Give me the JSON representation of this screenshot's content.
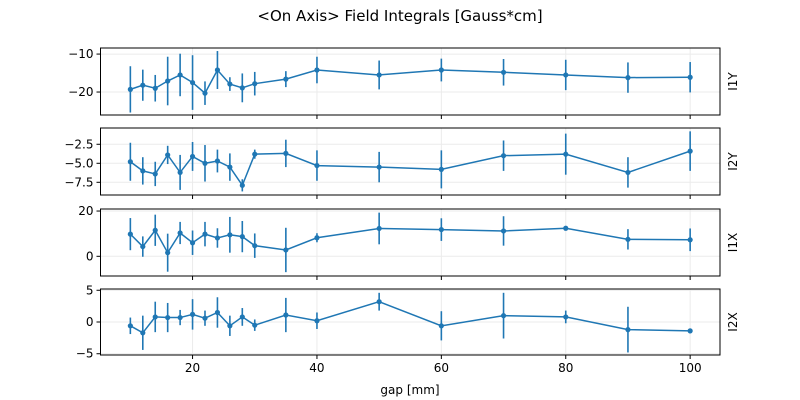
{
  "chart_data": {
    "type": "line",
    "title": "<On Axis> Field Integrals [Gauss*cm]",
    "xlabel": "gap [mm]",
    "xlim": [
      5.2,
      104.8
    ],
    "xticks": [
      20,
      40,
      60,
      80,
      100
    ],
    "grid": true,
    "color": "#1f77b4",
    "x": [
      10,
      12,
      14,
      16,
      18,
      20,
      22,
      24,
      26,
      28,
      30,
      35,
      40,
      50,
      60,
      70,
      80,
      90,
      100
    ],
    "subplots": [
      {
        "ylabel": "I1Y",
        "ylim": [
          -26.05,
          -8.4
        ],
        "yticks": [
          -10,
          -20
        ],
        "ytick_labels": [
          "−10",
          "−20"
        ],
        "values": [
          -19.3,
          -18.2,
          -19.0,
          -17.1,
          -15.5,
          -17.5,
          -20.3,
          -14.2,
          -17.9,
          -18.9,
          -17.8,
          -16.6,
          -14.2,
          -15.5,
          -14.2,
          -14.8,
          -15.5,
          -16.2,
          -16.1
        ],
        "errors": [
          6.1,
          4.1,
          3.5,
          6.4,
          5.6,
          7.2,
          3.1,
          5.0,
          1.8,
          3.8,
          3.1,
          2.1,
          3.5,
          3.8,
          3.0,
          3.5,
          4.0,
          4.0,
          4.0
        ]
      },
      {
        "ylabel": "I2Y",
        "ylim": [
          -9.17,
          -0.36
        ],
        "yticks": [
          -2.5,
          -5,
          -7.5
        ],
        "ytick_labels": [
          "−2.5",
          "−5.0",
          "−7.5"
        ],
        "values": [
          -4.8,
          -6.0,
          -6.4,
          -3.9,
          -6.2,
          -4.1,
          -5.0,
          -4.7,
          -5.5,
          -7.9,
          -3.8,
          -3.7,
          -5.3,
          -5.5,
          -5.8,
          -4.0,
          -3.8,
          -6.2,
          -3.4
        ],
        "errors": [
          2.5,
          1.8,
          1.6,
          1.2,
          2.3,
          1.9,
          2.4,
          1.5,
          1.8,
          0.8,
          0.6,
          1.8,
          2.0,
          2.0,
          2.5,
          2.0,
          2.7,
          2.0,
          2.6
        ]
      },
      {
        "ylabel": "I1X",
        "ylim": [
          -8.7,
          20.9
        ],
        "yticks": [
          20,
          0
        ],
        "ytick_labels": [
          "20",
          "0"
        ],
        "values": [
          9.8,
          4.3,
          11.5,
          1.6,
          10.3,
          6.0,
          9.8,
          8.1,
          9.5,
          8.7,
          4.7,
          2.8,
          8.2,
          12.3,
          11.8,
          11.2,
          12.4,
          7.5,
          7.3
        ],
        "errors": [
          7.1,
          4.5,
          6.9,
          8.4,
          4.9,
          5.4,
          5.4,
          4.3,
          7.9,
          6.9,
          5.4,
          9.8,
          2.0,
          7.0,
          5.0,
          6.5,
          1.0,
          4.5,
          5.0
        ]
      },
      {
        "ylabel": "I2X",
        "ylim": [
          -5.2,
          5.2
        ],
        "yticks": [
          5,
          0,
          -5
        ],
        "ytick_labels": [
          "5",
          "0",
          "−5"
        ],
        "values": [
          -0.6,
          -1.7,
          0.8,
          0.7,
          0.7,
          1.2,
          0.6,
          1.5,
          -0.6,
          0.8,
          -0.5,
          1.1,
          0.2,
          3.2,
          -0.6,
          1.0,
          0.8,
          -1.2,
          -1.4
        ],
        "errors": [
          1.3,
          2.7,
          2.4,
          2.3,
          1.2,
          2.4,
          1.2,
          2.4,
          1.6,
          1.4,
          0.9,
          2.7,
          1.3,
          1.4,
          2.3,
          3.6,
          1.0,
          3.6,
          0.2
        ]
      }
    ]
  }
}
